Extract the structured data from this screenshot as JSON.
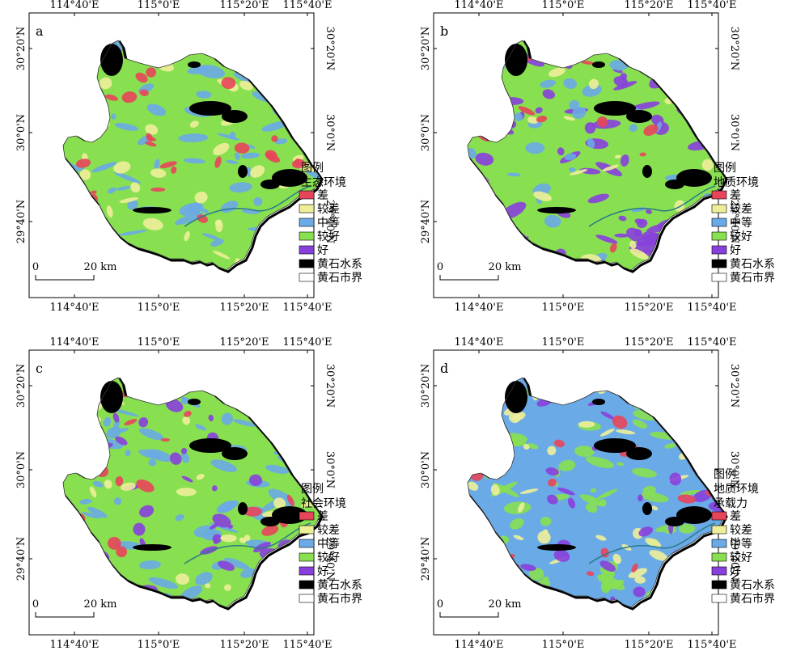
{
  "colors": {
    "poor": "#e8455a",
    "fair": "#eeee99",
    "moderate": "#6aaae6",
    "good": "#88e050",
    "excellent": "#8840dd",
    "water": "#000000",
    "boundary": "#ffffff"
  },
  "axes": {
    "top_ticks": [
      "114°40'E",
      "115°0'E",
      "115°20'E",
      "115°40'E"
    ],
    "bottom_ticks": [
      "114°40'E",
      "115°0'E",
      "115°20'E",
      "115°40'E"
    ],
    "left_ticks": [
      "30°20'N",
      "30°0'N",
      "29°40'N"
    ],
    "right_ticks": [
      "30°20'N",
      "30°0'N",
      "29°40'N"
    ]
  },
  "scale_bar": {
    "start": "0",
    "end": "20 km"
  },
  "panels": [
    {
      "letter": "a",
      "legend_title": [
        "图例",
        "生态环境"
      ],
      "legend_items": [
        {
          "label": "差",
          "color_key": "poor"
        },
        {
          "label": "较差",
          "color_key": "fair"
        },
        {
          "label": "中等",
          "color_key": "moderate"
        },
        {
          "label": "较好",
          "color_key": "good"
        },
        {
          "label": "好",
          "color_key": "excellent"
        },
        {
          "label": "黄石水系",
          "color_key": "water"
        },
        {
          "label": "黄石市界",
          "color_key": "boundary"
        }
      ],
      "dominant": "good",
      "patches": [
        "moderate",
        "fair",
        "poor"
      ]
    },
    {
      "letter": "b",
      "legend_title": [
        "图例",
        "地质环境"
      ],
      "legend_items": [
        {
          "label": "差",
          "color_key": "poor"
        },
        {
          "label": "较差",
          "color_key": "fair"
        },
        {
          "label": "中等",
          "color_key": "moderate"
        },
        {
          "label": "较好",
          "color_key": "good"
        },
        {
          "label": "好",
          "color_key": "excellent"
        },
        {
          "label": "黄石水系",
          "color_key": "water"
        },
        {
          "label": "黄石市界",
          "color_key": "boundary"
        }
      ],
      "dominant": "good",
      "patches": [
        "excellent",
        "moderate",
        "fair",
        "poor"
      ]
    },
    {
      "letter": "c",
      "legend_title": [
        "图例",
        "社会环境"
      ],
      "legend_items": [
        {
          "label": "差",
          "color_key": "poor"
        },
        {
          "label": "较差",
          "color_key": "fair"
        },
        {
          "label": "中等",
          "color_key": "moderate"
        },
        {
          "label": "较好",
          "color_key": "good"
        },
        {
          "label": "好",
          "color_key": "excellent"
        },
        {
          "label": "黄石水系",
          "color_key": "water"
        },
        {
          "label": "黄石市界",
          "color_key": "boundary"
        }
      ],
      "dominant": "good",
      "patches": [
        "moderate",
        "excellent",
        "fair",
        "poor"
      ]
    },
    {
      "letter": "d",
      "legend_title": [
        "图例",
        "地质环境",
        "承载力"
      ],
      "legend_items": [
        {
          "label": "差",
          "color_key": "poor"
        },
        {
          "label": "较差",
          "color_key": "fair"
        },
        {
          "label": "中等",
          "color_key": "moderate"
        },
        {
          "label": "较好",
          "color_key": "good"
        },
        {
          "label": "好",
          "color_key": "excellent"
        },
        {
          "label": "黄石水系",
          "color_key": "water"
        },
        {
          "label": "黄石市界",
          "color_key": "boundary"
        }
      ],
      "dominant": "moderate",
      "patches": [
        "good",
        "fair",
        "excellent",
        "poor"
      ]
    }
  ]
}
